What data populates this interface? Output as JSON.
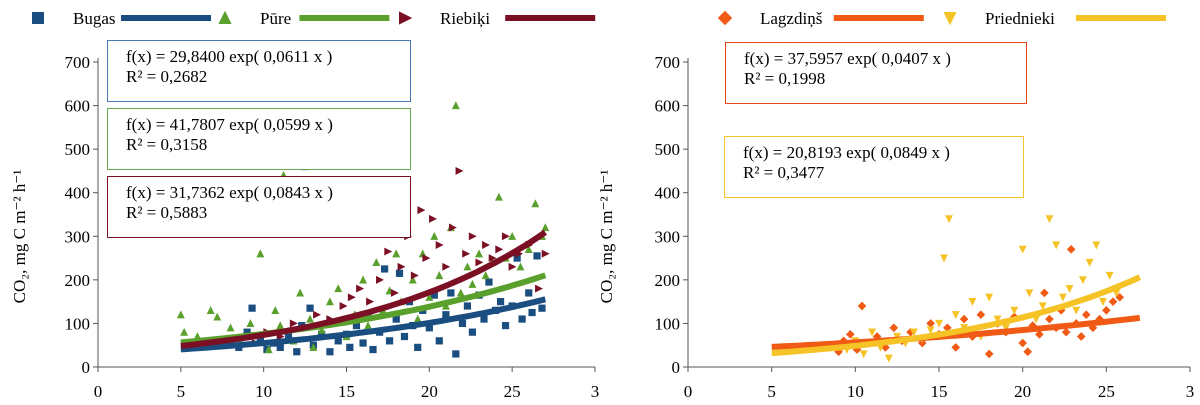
{
  "chart_data": [
    {
      "type": "scatter",
      "title": "",
      "ylabel": "CO₂, mg C m⁻² h⁻¹",
      "xlabel": "",
      "xlim": [
        0,
        30
      ],
      "ylim": [
        0,
        700
      ],
      "xticks": [
        "0",
        "5",
        "10",
        "15",
        "20",
        "25",
        "3"
      ],
      "yticks": [
        "0",
        "100",
        "200",
        "300",
        "400",
        "500",
        "600",
        "700"
      ],
      "legend_position": "top",
      "series": [
        {
          "name": "Bugas",
          "marker": "square",
          "color": "#1a4d80",
          "trend": {
            "a": 29.84,
            "b": 0.0611,
            "x_range": [
              5,
              27
            ],
            "equation": "f(x) = 29,8400 exp( 0,0611 x )",
            "r2": "R² = 0,2682",
            "box_color": "#4a77b4"
          },
          "points": [
            [
              8.5,
              45
            ],
            [
              9,
              80
            ],
            [
              9.3,
              135
            ],
            [
              9.8,
              60
            ],
            [
              10.2,
              40
            ],
            [
              10.6,
              55
            ],
            [
              11,
              45
            ],
            [
              11.5,
              70
            ],
            [
              12,
              35
            ],
            [
              12.3,
              95
            ],
            [
              12.5,
              460
            ],
            [
              12.8,
              135
            ],
            [
              13,
              50
            ],
            [
              13.5,
              75
            ],
            [
              14,
              35
            ],
            [
              14.5,
              60
            ],
            [
              15,
              75
            ],
            [
              15.2,
              45
            ],
            [
              15.6,
              95
            ],
            [
              16,
              55
            ],
            [
              16.3,
              120
            ],
            [
              16.6,
              40
            ],
            [
              17,
              80
            ],
            [
              17.3,
              225
            ],
            [
              17.6,
              60
            ],
            [
              18,
              110
            ],
            [
              18.2,
              215
            ],
            [
              18.5,
              70
            ],
            [
              18.8,
              150
            ],
            [
              19,
              95
            ],
            [
              19.3,
              45
            ],
            [
              19.6,
              130
            ],
            [
              20,
              90
            ],
            [
              20.3,
              165
            ],
            [
              20.6,
              60
            ],
            [
              21,
              120
            ],
            [
              21.3,
              170
            ],
            [
              21.6,
              30
            ],
            [
              22,
              100
            ],
            [
              22.3,
              140
            ],
            [
              22.6,
              80
            ],
            [
              23,
              165
            ],
            [
              23.3,
              110
            ],
            [
              23.6,
              195
            ],
            [
              24,
              130
            ],
            [
              24.3,
              150
            ],
            [
              24.6,
              95
            ],
            [
              25,
              140
            ],
            [
              25.3,
              250
            ],
            [
              25.6,
              110
            ],
            [
              26,
              170
            ],
            [
              26.2,
              125
            ],
            [
              26.5,
              255
            ],
            [
              26.8,
              135
            ]
          ]
        },
        {
          "name": "Pūre",
          "marker": "triangle",
          "color": "#5aa02c",
          "trend": {
            "a": 41.7807,
            "b": 0.0599,
            "x_range": [
              5,
              27
            ],
            "equation": "f(x) = 41,7807 exp( 0,0599 x )",
            "r2": "R² = 0,3158",
            "box_color": "#6aa84f"
          },
          "points": [
            [
              5,
              120
            ],
            [
              5.2,
              80
            ],
            [
              6,
              70
            ],
            [
              6.8,
              130
            ],
            [
              7.2,
              115
            ],
            [
              8,
              90
            ],
            [
              8.5,
              65
            ],
            [
              9.2,
              100
            ],
            [
              9.8,
              260
            ],
            [
              10.3,
              40
            ],
            [
              10.7,
              130
            ],
            [
              11,
              95
            ],
            [
              11.2,
              440
            ],
            [
              11.8,
              60
            ],
            [
              12.2,
              170
            ],
            [
              12.8,
              110
            ],
            [
              13,
              45
            ],
            [
              13.5,
              85
            ],
            [
              14,
              150
            ],
            [
              14.5,
              180
            ],
            [
              15,
              70
            ],
            [
              15.5,
              120
            ],
            [
              16,
              200
            ],
            [
              16.3,
              95
            ],
            [
              16.8,
              240
            ],
            [
              17.2,
              130
            ],
            [
              17.6,
              175
            ],
            [
              18,
              260
            ],
            [
              18.3,
              150
            ],
            [
              18.7,
              320
            ],
            [
              19,
              200
            ],
            [
              19.3,
              110
            ],
            [
              19.6,
              260
            ],
            [
              20,
              160
            ],
            [
              20.3,
              300
            ],
            [
              20.6,
              210
            ],
            [
              21,
              140
            ],
            [
              21.3,
              320
            ],
            [
              21.6,
              600
            ],
            [
              21.9,
              170
            ],
            [
              22.3,
              230
            ],
            [
              22.6,
              190
            ],
            [
              23,
              260
            ],
            [
              23.4,
              210
            ],
            [
              23.8,
              240
            ],
            [
              24.2,
              390
            ],
            [
              24.6,
              250
            ],
            [
              25,
              300
            ],
            [
              25.5,
              230
            ],
            [
              26,
              270
            ],
            [
              26.4,
              375
            ],
            [
              26.8,
              300
            ],
            [
              27,
              320
            ]
          ]
        },
        {
          "name": "Riebiķi",
          "marker": "arrow",
          "color": "#7b1025",
          "trend": {
            "a": 31.7362,
            "b": 0.0843,
            "x_range": [
              5,
              27
            ],
            "equation": "f(x) = 31,7362 exp( 0,0843 x )",
            "r2": "R² = 0,5883",
            "box_color": "#7b1025"
          },
          "points": [
            [
              9.5,
              55
            ],
            [
              10.2,
              80
            ],
            [
              11,
              70
            ],
            [
              11.8,
              100
            ],
            [
              12.5,
              90
            ],
            [
              13.2,
              120
            ],
            [
              14,
              110
            ],
            [
              14.8,
              140
            ],
            [
              15.3,
              160
            ],
            [
              15.8,
              180
            ],
            [
              16.4,
              150
            ],
            [
              17,
              200
            ],
            [
              17.5,
              265
            ],
            [
              17.9,
              170
            ],
            [
              18.3,
              230
            ],
            [
              18.7,
              300
            ],
            [
              19.1,
              210
            ],
            [
              19.5,
              360
            ],
            [
              19.8,
              250
            ],
            [
              20.2,
              340
            ],
            [
              20.6,
              280
            ],
            [
              21,
              230
            ],
            [
              21.4,
              320
            ],
            [
              21.8,
              450
            ],
            [
              22.2,
              260
            ],
            [
              22.6,
              300
            ],
            [
              23,
              240
            ],
            [
              23.4,
              280
            ],
            [
              23.8,
              250
            ],
            [
              24.2,
              270
            ],
            [
              24.6,
              300
            ],
            [
              25,
              230
            ],
            [
              25.4,
              260
            ],
            [
              26,
              280
            ],
            [
              26.6,
              180
            ],
            [
              27,
              260
            ]
          ]
        }
      ]
    },
    {
      "type": "scatter",
      "title": "",
      "ylabel": "CO₂, mg C m⁻² h⁻¹",
      "xlabel": "",
      "xlim": [
        0,
        30
      ],
      "ylim": [
        0,
        700
      ],
      "xticks": [
        "0",
        "5",
        "10",
        "15",
        "20",
        "25",
        "3"
      ],
      "yticks": [
        "0",
        "100",
        "200",
        "300",
        "400",
        "500",
        "600",
        "700"
      ],
      "legend_position": "top",
      "series": [
        {
          "name": "Lagzdiņš",
          "marker": "diamond",
          "color": "#f05a14",
          "trend": {
            "a": 37.5957,
            "b": 0.0407,
            "x_range": [
              5,
              27
            ],
            "equation": "f(x) = 37,5957 exp( 0,0407 x )",
            "r2": "R² = 0,1998",
            "box_color": "#e8461c"
          },
          "points": [
            [
              9,
              35
            ],
            [
              9.3,
              60
            ],
            [
              9.7,
              75
            ],
            [
              10.1,
              40
            ],
            [
              10.4,
              140
            ],
            [
              10.8,
              55
            ],
            [
              11.3,
              70
            ],
            [
              11.8,
              45
            ],
            [
              12.3,
              90
            ],
            [
              12.8,
              60
            ],
            [
              13.3,
              80
            ],
            [
              14,
              55
            ],
            [
              14.5,
              100
            ],
            [
              15,
              75
            ],
            [
              15.5,
              90
            ],
            [
              16,
              45
            ],
            [
              16.5,
              110
            ],
            [
              17,
              70
            ],
            [
              17.5,
              120
            ],
            [
              18,
              30
            ],
            [
              18.5,
              100
            ],
            [
              19,
              80
            ],
            [
              19.5,
              115
            ],
            [
              20,
              55
            ],
            [
              20.3,
              35
            ],
            [
              20.6,
              95
            ],
            [
              21,
              75
            ],
            [
              21.3,
              170
            ],
            [
              21.6,
              110
            ],
            [
              22,
              90
            ],
            [
              22.3,
              130
            ],
            [
              22.6,
              80
            ],
            [
              22.9,
              270
            ],
            [
              23.2,
              100
            ],
            [
              23.5,
              70
            ],
            [
              23.8,
              120
            ],
            [
              24.2,
              90
            ],
            [
              24.6,
              110
            ],
            [
              25,
              130
            ],
            [
              25.4,
              150
            ],
            [
              25.8,
              160
            ]
          ]
        },
        {
          "name": "Priednieki",
          "marker": "triangle-down",
          "color": "#f6c327",
          "trend": {
            "a": 20.8193,
            "b": 0.0849,
            "x_range": [
              5,
              27
            ],
            "equation": "f(x) = 20,8193 exp( 0,0849 x )",
            "r2": "R² = 0,3477",
            "box_color": "#f6c327"
          },
          "points": [
            [
              9.5,
              40
            ],
            [
              10,
              60
            ],
            [
              10.5,
              30
            ],
            [
              11,
              80
            ],
            [
              11.5,
              45
            ],
            [
              12,
              20
            ],
            [
              12.5,
              70
            ],
            [
              13,
              55
            ],
            [
              13.5,
              80
            ],
            [
              14,
              65
            ],
            [
              14.5,
              85
            ],
            [
              15,
              100
            ],
            [
              15.3,
              250
            ],
            [
              15.6,
              340
            ],
            [
              16,
              120
            ],
            [
              16.5,
              90
            ],
            [
              17,
              150
            ],
            [
              17.5,
              70
            ],
            [
              18,
              160
            ],
            [
              18.5,
              110
            ],
            [
              19,
              90
            ],
            [
              19.5,
              130
            ],
            [
              20,
              270
            ],
            [
              20.4,
              170
            ],
            [
              20.8,
              110
            ],
            [
              21.2,
              140
            ],
            [
              21.6,
              340
            ],
            [
              22,
              280
            ],
            [
              22.4,
              160
            ],
            [
              22.8,
              180
            ],
            [
              23.2,
              130
            ],
            [
              23.6,
              200
            ],
            [
              24,
              240
            ],
            [
              24.4,
              280
            ],
            [
              24.8,
              150
            ],
            [
              25.2,
              210
            ],
            [
              25.6,
              170
            ]
          ]
        }
      ]
    }
  ]
}
